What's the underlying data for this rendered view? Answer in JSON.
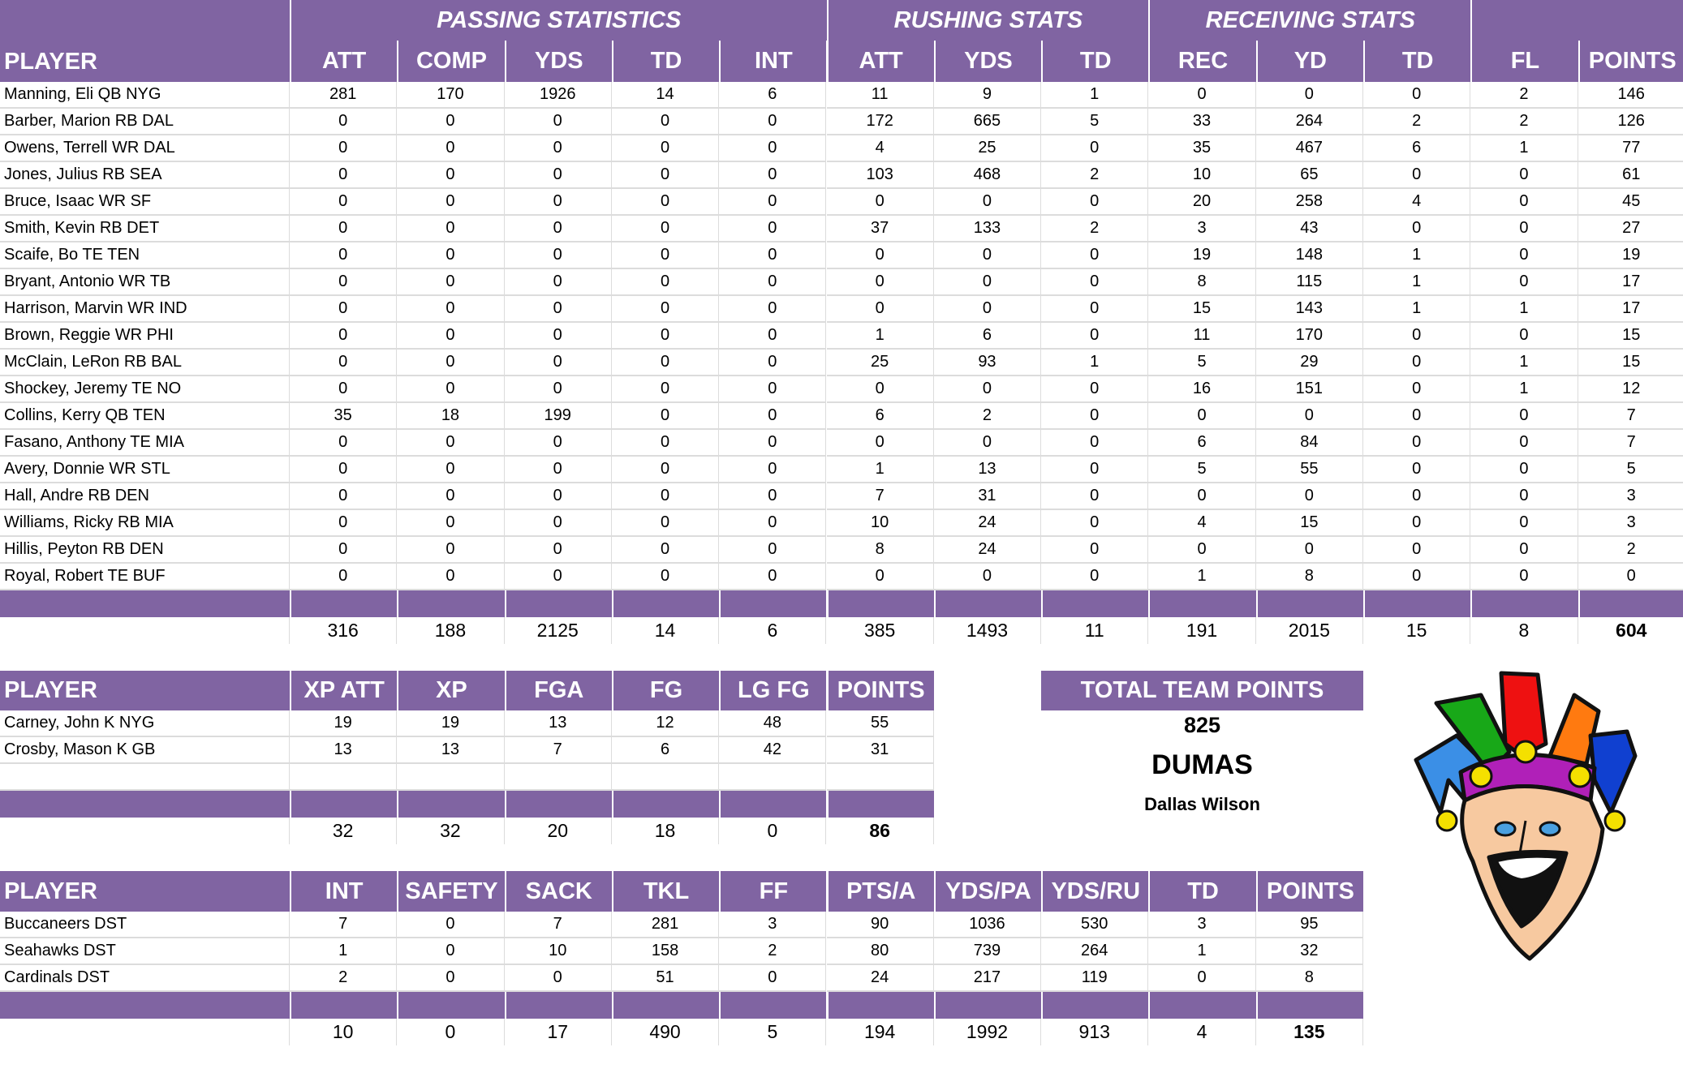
{
  "main": {
    "player_header": "PLAYER",
    "group_headers": [
      {
        "label": "PASSING STATISTICS",
        "start": 0,
        "span": 5
      },
      {
        "label": "RUSHING STATS",
        "start": 5,
        "span": 3
      },
      {
        "label": "RECEIVING STATS",
        "start": 8,
        "span": 3
      },
      {
        "label": "",
        "start": 11,
        "span": 2
      }
    ],
    "columns": [
      "ATT",
      "COMP",
      "YDS",
      "TD",
      "INT",
      "ATT",
      "YDS",
      "TD",
      "REC",
      "YD",
      "TD",
      "FL",
      "POINTS"
    ],
    "rows": [
      {
        "player": "Manning, Eli QB NYG",
        "values": [
          "281",
          "170",
          "1926",
          "14",
          "6",
          "11",
          "9",
          "1",
          "0",
          "0",
          "0",
          "2",
          "146"
        ]
      },
      {
        "player": "Barber, Marion RB DAL",
        "values": [
          "0",
          "0",
          "0",
          "0",
          "0",
          "172",
          "665",
          "5",
          "33",
          "264",
          "2",
          "2",
          "126"
        ]
      },
      {
        "player": "Owens, Terrell WR DAL",
        "values": [
          "0",
          "0",
          "0",
          "0",
          "0",
          "4",
          "25",
          "0",
          "35",
          "467",
          "6",
          "1",
          "77"
        ]
      },
      {
        "player": "Jones, Julius RB SEA",
        "values": [
          "0",
          "0",
          "0",
          "0",
          "0",
          "103",
          "468",
          "2",
          "10",
          "65",
          "0",
          "0",
          "61"
        ]
      },
      {
        "player": "Bruce, Isaac WR SF",
        "values": [
          "0",
          "0",
          "0",
          "0",
          "0",
          "0",
          "0",
          "0",
          "20",
          "258",
          "4",
          "0",
          "45"
        ]
      },
      {
        "player": "Smith, Kevin RB DET",
        "values": [
          "0",
          "0",
          "0",
          "0",
          "0",
          "37",
          "133",
          "2",
          "3",
          "43",
          "0",
          "0",
          "27"
        ]
      },
      {
        "player": "Scaife, Bo TE TEN",
        "values": [
          "0",
          "0",
          "0",
          "0",
          "0",
          "0",
          "0",
          "0",
          "19",
          "148",
          "1",
          "0",
          "19"
        ]
      },
      {
        "player": "Bryant, Antonio WR TB",
        "values": [
          "0",
          "0",
          "0",
          "0",
          "0",
          "0",
          "0",
          "0",
          "8",
          "115",
          "1",
          "0",
          "17"
        ]
      },
      {
        "player": "Harrison, Marvin WR IND",
        "values": [
          "0",
          "0",
          "0",
          "0",
          "0",
          "0",
          "0",
          "0",
          "15",
          "143",
          "1",
          "1",
          "17"
        ]
      },
      {
        "player": "Brown, Reggie WR PHI",
        "values": [
          "0",
          "0",
          "0",
          "0",
          "0",
          "1",
          "6",
          "0",
          "11",
          "170",
          "0",
          "0",
          "15"
        ]
      },
      {
        "player": "McClain, LeRon RB BAL",
        "values": [
          "0",
          "0",
          "0",
          "0",
          "0",
          "25",
          "93",
          "1",
          "5",
          "29",
          "0",
          "1",
          "15"
        ]
      },
      {
        "player": "Shockey, Jeremy TE NO",
        "values": [
          "0",
          "0",
          "0",
          "0",
          "0",
          "0",
          "0",
          "0",
          "16",
          "151",
          "0",
          "1",
          "12"
        ]
      },
      {
        "player": "Collins, Kerry QB TEN",
        "values": [
          "35",
          "18",
          "199",
          "0",
          "0",
          "6",
          "2",
          "0",
          "0",
          "0",
          "0",
          "0",
          "7"
        ]
      },
      {
        "player": "Fasano, Anthony TE MIA",
        "values": [
          "0",
          "0",
          "0",
          "0",
          "0",
          "0",
          "0",
          "0",
          "6",
          "84",
          "0",
          "0",
          "7"
        ]
      },
      {
        "player": "Avery, Donnie WR STL",
        "values": [
          "0",
          "0",
          "0",
          "0",
          "0",
          "1",
          "13",
          "0",
          "5",
          "55",
          "0",
          "0",
          "5"
        ]
      },
      {
        "player": "Hall, Andre RB DEN",
        "values": [
          "0",
          "0",
          "0",
          "0",
          "0",
          "7",
          "31",
          "0",
          "0",
          "0",
          "0",
          "0",
          "3"
        ]
      },
      {
        "player": "Williams, Ricky RB MIA",
        "values": [
          "0",
          "0",
          "0",
          "0",
          "0",
          "10",
          "24",
          "0",
          "4",
          "15",
          "0",
          "0",
          "3"
        ]
      },
      {
        "player": "Hillis, Peyton RB DEN",
        "values": [
          "0",
          "0",
          "0",
          "0",
          "0",
          "8",
          "24",
          "0",
          "0",
          "0",
          "0",
          "0",
          "2"
        ]
      },
      {
        "player": "Royal, Robert TE BUF",
        "values": [
          "0",
          "0",
          "0",
          "0",
          "0",
          "0",
          "0",
          "0",
          "1",
          "8",
          "0",
          "0",
          "0"
        ]
      }
    ],
    "totals": [
      "316",
      "188",
      "2125",
      "14",
      "6",
      "385",
      "1493",
      "11",
      "191",
      "2015",
      "15",
      "8",
      "604"
    ]
  },
  "kicker": {
    "player_header": "PLAYER",
    "columns": [
      "XP ATT",
      "XP",
      "FGA",
      "FG",
      "LG FG",
      "POINTS"
    ],
    "rows": [
      {
        "player": "Carney, John K NYG",
        "values": [
          "19",
          "19",
          "13",
          "12",
          "48",
          "55"
        ]
      },
      {
        "player": "Crosby, Mason K GB",
        "values": [
          "13",
          "13",
          "7",
          "6",
          "42",
          "31"
        ]
      }
    ],
    "totals": [
      "32",
      "32",
      "20",
      "18",
      "0",
      "86"
    ]
  },
  "team": {
    "label": "TOTAL TEAM POINTS",
    "points": "825",
    "team_name": "DUMAS",
    "owner": "Dallas Wilson"
  },
  "defense": {
    "player_header": "PLAYER",
    "columns": [
      "INT",
      "SAFETY",
      "SACK",
      "TKL",
      "FF",
      "PTS/A",
      "YDS/PA",
      "YDS/RU",
      "TD",
      "POINTS"
    ],
    "rows": [
      {
        "player": "Buccaneers DST",
        "values": [
          "7",
          "0",
          "7",
          "281",
          "3",
          "90",
          "1036",
          "530",
          "3",
          "95"
        ]
      },
      {
        "player": "Seahawks DST",
        "values": [
          "1",
          "0",
          "10",
          "158",
          "2",
          "80",
          "739",
          "264",
          "1",
          "32"
        ]
      },
      {
        "player": "Cardinals DST",
        "values": [
          "2",
          "0",
          "0",
          "51",
          "0",
          "24",
          "217",
          "119",
          "0",
          "8"
        ]
      }
    ],
    "totals": [
      "10",
      "0",
      "17",
      "490",
      "5",
      "194",
      "1992",
      "913",
      "4",
      "135"
    ]
  },
  "logo": {
    "icon": "jester-icon"
  },
  "colors": {
    "header": "#8064a2",
    "grid": "#dcdcdc"
  }
}
